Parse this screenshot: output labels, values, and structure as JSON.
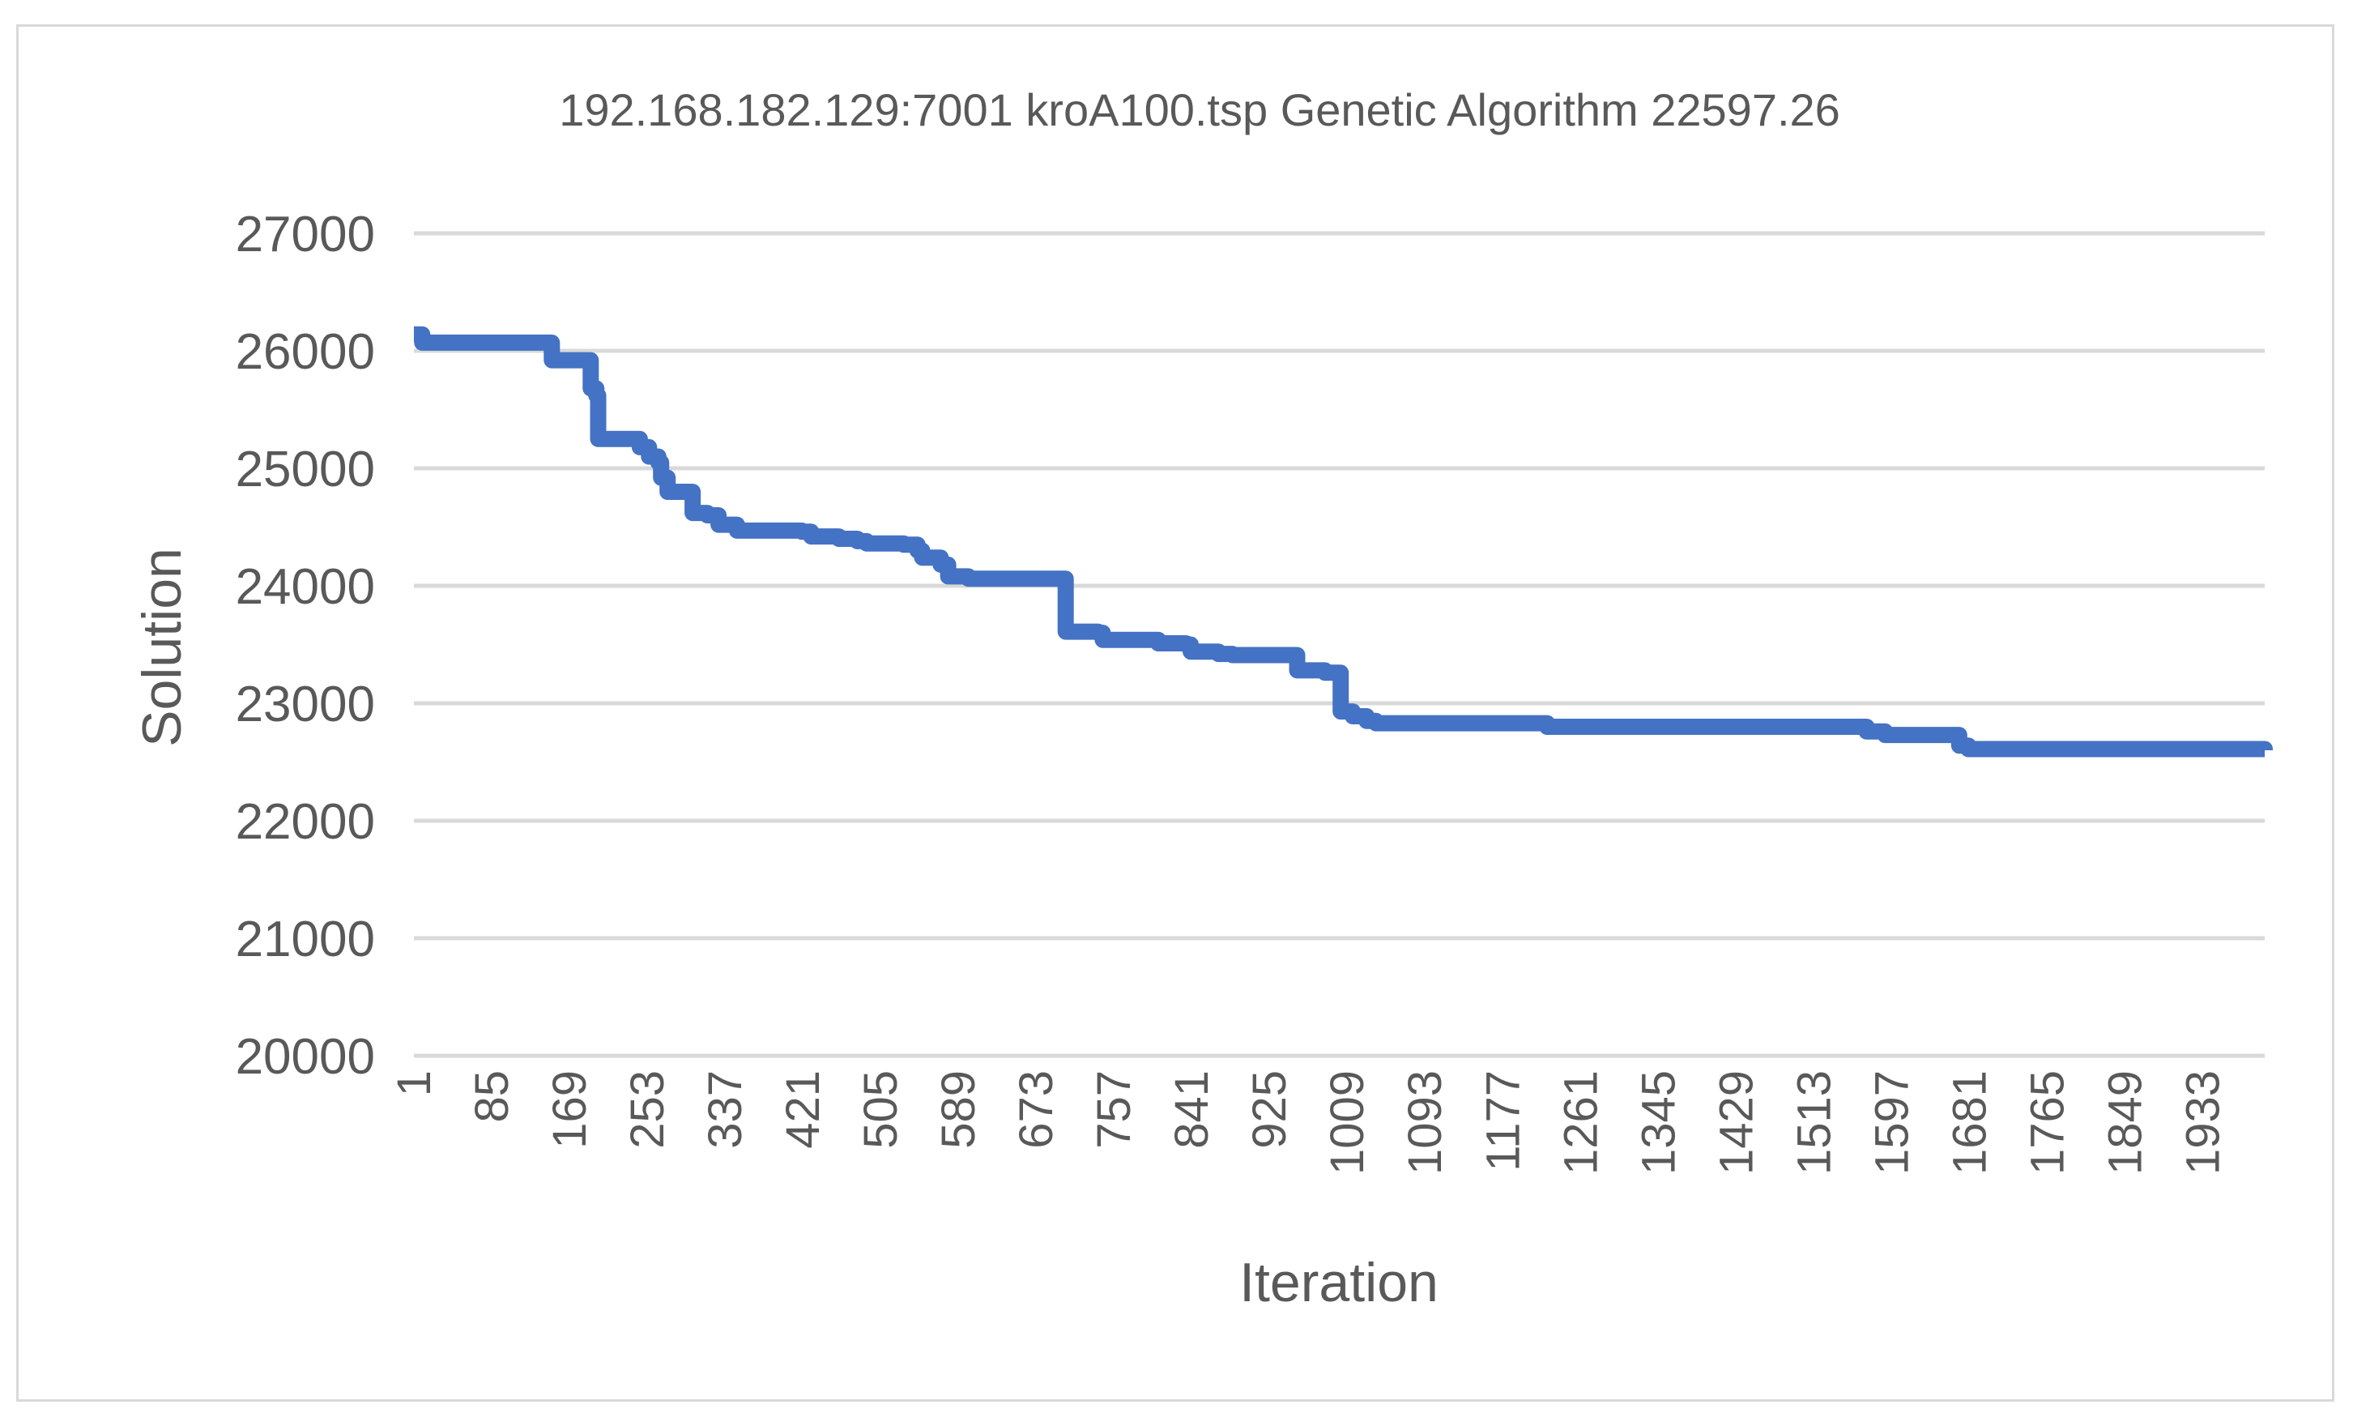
{
  "chart_data": {
    "type": "line",
    "title": "192.168.182.129:7001 kroA100.tsp Genetic Algorithm 22597.26",
    "xlabel": "Iteration",
    "ylabel": "Solution",
    "ylim": [
      20000,
      27000
    ],
    "xlim": [
      1,
      2000
    ],
    "y_ticks": [
      "20000",
      "21000",
      "22000",
      "23000",
      "24000",
      "25000",
      "26000",
      "27000"
    ],
    "x_ticks": [
      "1",
      "85",
      "169",
      "253",
      "337",
      "421",
      "505",
      "589",
      "673",
      "757",
      "841",
      "925",
      "1009",
      "1093",
      "1177",
      "1261",
      "1345",
      "1429",
      "1513",
      "1597",
      "1681",
      "1765",
      "1849",
      "1933"
    ],
    "grid": true,
    "legend": "none",
    "series": [
      {
        "name": "Solution",
        "color": "#4472c4",
        "points": [
          [
            1,
            26140
          ],
          [
            8,
            26140
          ],
          [
            10,
            26070
          ],
          [
            100,
            26070
          ],
          [
            148,
            26070
          ],
          [
            150,
            25920
          ],
          [
            190,
            25920
          ],
          [
            192,
            25680
          ],
          [
            198,
            25620
          ],
          [
            200,
            25250
          ],
          [
            240,
            25250
          ],
          [
            245,
            25180
          ],
          [
            255,
            25100
          ],
          [
            265,
            25050
          ],
          [
            268,
            24920
          ],
          [
            275,
            24800
          ],
          [
            300,
            24800
          ],
          [
            302,
            24620
          ],
          [
            318,
            24600
          ],
          [
            330,
            24520
          ],
          [
            350,
            24470
          ],
          [
            420,
            24460
          ],
          [
            430,
            24420
          ],
          [
            460,
            24400
          ],
          [
            480,
            24380
          ],
          [
            490,
            24360
          ],
          [
            530,
            24350
          ],
          [
            545,
            24300
          ],
          [
            550,
            24240
          ],
          [
            570,
            24180
          ],
          [
            578,
            24080
          ],
          [
            600,
            24060
          ],
          [
            700,
            24060
          ],
          [
            705,
            23610
          ],
          [
            740,
            23600
          ],
          [
            745,
            23540
          ],
          [
            800,
            23540
          ],
          [
            805,
            23510
          ],
          [
            835,
            23500
          ],
          [
            840,
            23440
          ],
          [
            870,
            23420
          ],
          [
            885,
            23410
          ],
          [
            950,
            23410
          ],
          [
            955,
            23280
          ],
          [
            985,
            23260
          ],
          [
            1000,
            23260
          ],
          [
            1002,
            22930
          ],
          [
            1015,
            22890
          ],
          [
            1030,
            22850
          ],
          [
            1040,
            22830
          ],
          [
            1220,
            22830
          ],
          [
            1225,
            22800
          ],
          [
            1560,
            22800
          ],
          [
            1570,
            22760
          ],
          [
            1590,
            22730
          ],
          [
            1665,
            22730
          ],
          [
            1670,
            22640
          ],
          [
            1680,
            22610
          ],
          [
            1800,
            22610
          ],
          [
            2000,
            22600
          ]
        ]
      }
    ]
  }
}
